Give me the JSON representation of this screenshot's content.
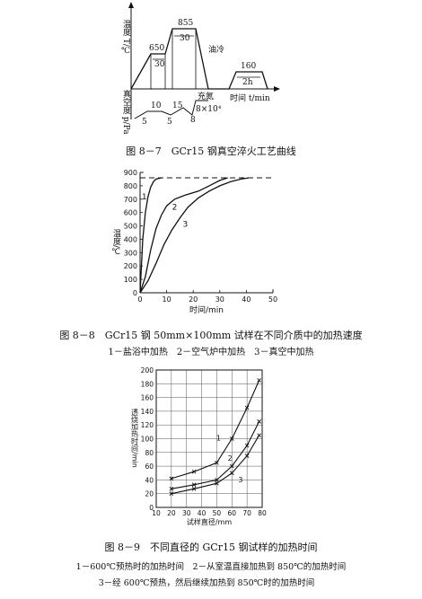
{
  "fig7": {
    "caption": "图 8－7　GCr15 钢真空淬火工艺曲线",
    "y_top_label": "温度 T/℃",
    "y_bottom_label": "真空度 p/Pa",
    "temps": [
      "650",
      "855",
      "160"
    ],
    "hold_times": [
      "30",
      "30",
      "2h"
    ],
    "annotations": {
      "oil_quench": "油冷",
      "nitrogen": "充氮",
      "time_axis": "时间 t/min",
      "pressure": "8×10⁴"
    },
    "vacuum_levels": [
      "10",
      "15",
      "5",
      "5",
      "8"
    ]
  },
  "fig8": {
    "caption": "图 8－8　GCr15 钢 50mm×100mm 试样在不同介质中的加热速度",
    "legend_line": "1－盐浴中加热　2－空气炉中加热　3－真空中加热",
    "chart_data": {
      "type": "line",
      "xlabel": "时间/min",
      "ylabel": "温度/℃",
      "xlim": [
        0,
        50
      ],
      "ylim": [
        0,
        900
      ],
      "xticks": [
        "0",
        "10",
        "20",
        "30",
        "40",
        "50"
      ],
      "yticks": [
        "0",
        "100",
        "200",
        "300",
        "400",
        "500",
        "600",
        "700",
        "800",
        "900"
      ],
      "reference_y": 860,
      "series": [
        {
          "name": "1",
          "points": [
            [
              0,
              0
            ],
            [
              0.5,
              200
            ],
            [
              1,
              400
            ],
            [
              2,
              600
            ],
            [
              3,
              720
            ],
            [
              4,
              790
            ],
            [
              5,
              830
            ],
            [
              6,
              850
            ],
            [
              8,
              860
            ]
          ]
        },
        {
          "name": "2",
          "points": [
            [
              0,
              0
            ],
            [
              2,
              120
            ],
            [
              4,
              320
            ],
            [
              6,
              480
            ],
            [
              8,
              580
            ],
            [
              10,
              650
            ],
            [
              13,
              700
            ],
            [
              17,
              730
            ],
            [
              22,
              760
            ],
            [
              26,
              800
            ],
            [
              30,
              840
            ],
            [
              33,
              860
            ]
          ]
        },
        {
          "name": "3",
          "points": [
            [
              0,
              0
            ],
            [
              3,
              90
            ],
            [
              6,
              220
            ],
            [
              9,
              360
            ],
            [
              12,
              470
            ],
            [
              15,
              560
            ],
            [
              18,
              640
            ],
            [
              22,
              710
            ],
            [
              26,
              760
            ],
            [
              30,
              800
            ],
            [
              34,
              830
            ],
            [
              38,
              850
            ],
            [
              41,
              860
            ]
          ]
        }
      ]
    }
  },
  "fig9": {
    "caption": "图 8－9　不同直径的 GCr15 钢试样的加热时间",
    "legend": [
      "1－600℃预热时的加热时间　2－从室温直接加热到 850℃的加热时间",
      "3－经 600℃预热，然后继续加热到 850℃时的加热时间"
    ],
    "chart_data": {
      "type": "line",
      "xlabel": "试样直径/mm",
      "ylabel": "透烧加热时间/min",
      "xlim": [
        10,
        80
      ],
      "ylim": [
        0,
        200
      ],
      "xticks": [
        "10",
        "20",
        "30",
        "40",
        "50",
        "60",
        "70",
        "80"
      ],
      "yticks": [
        "0",
        "20",
        "40",
        "60",
        "80",
        "100",
        "120",
        "140",
        "160",
        "180",
        "200"
      ],
      "series": [
        {
          "name": "1",
          "points": [
            [
              20,
              42
            ],
            [
              35,
              52
            ],
            [
              50,
              65
            ],
            [
              60,
              100
            ],
            [
              70,
              145
            ],
            [
              78,
              185
            ]
          ]
        },
        {
          "name": "2",
          "points": [
            [
              20,
              27
            ],
            [
              35,
              33
            ],
            [
              50,
              40
            ],
            [
              60,
              60
            ],
            [
              70,
              90
            ],
            [
              78,
              125
            ]
          ]
        },
        {
          "name": "3",
          "points": [
            [
              20,
              20
            ],
            [
              35,
              27
            ],
            [
              50,
              35
            ],
            [
              60,
              50
            ],
            [
              70,
              75
            ],
            [
              78,
              105
            ]
          ]
        }
      ]
    }
  }
}
